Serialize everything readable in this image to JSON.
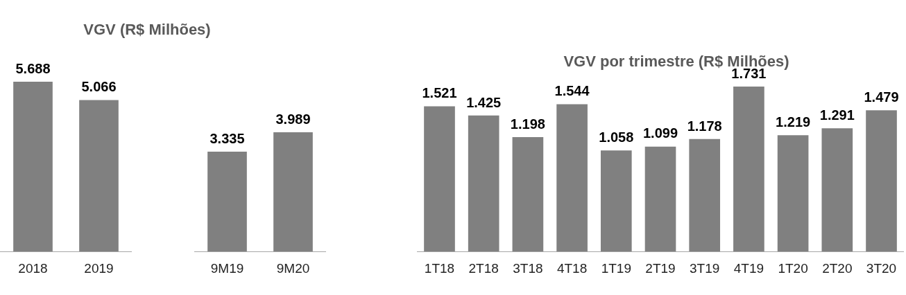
{
  "chart_data": [
    {
      "type": "bar",
      "title": "VGV (R$ Milhões)",
      "categories": [
        "2018",
        "2019"
      ],
      "values": [
        5688,
        5066
      ],
      "value_labels": [
        "5.688",
        "5.066"
      ],
      "color": "#808080"
    },
    {
      "type": "bar",
      "categories": [
        "9M19",
        "9M20"
      ],
      "values": [
        3335,
        3989
      ],
      "value_labels": [
        "3.335",
        "3.989"
      ],
      "color": "#808080"
    },
    {
      "type": "bar",
      "title": "VGV por trimestre (R$ Milhões)",
      "categories": [
        "1T18",
        "2T18",
        "3T18",
        "4T18",
        "1T19",
        "2T19",
        "3T19",
        "4T19",
        "1T20",
        "2T20",
        "3T20"
      ],
      "values": [
        1521,
        1425,
        1198,
        1544,
        1058,
        1099,
        1178,
        1731,
        1219,
        1291,
        1479
      ],
      "value_labels": [
        "1.521",
        "1.425",
        "1.198",
        "1.544",
        "1.058",
        "1.099",
        "1.178",
        "1.731",
        "1.219",
        "1.291",
        "1.479"
      ],
      "color": "#808080"
    }
  ]
}
